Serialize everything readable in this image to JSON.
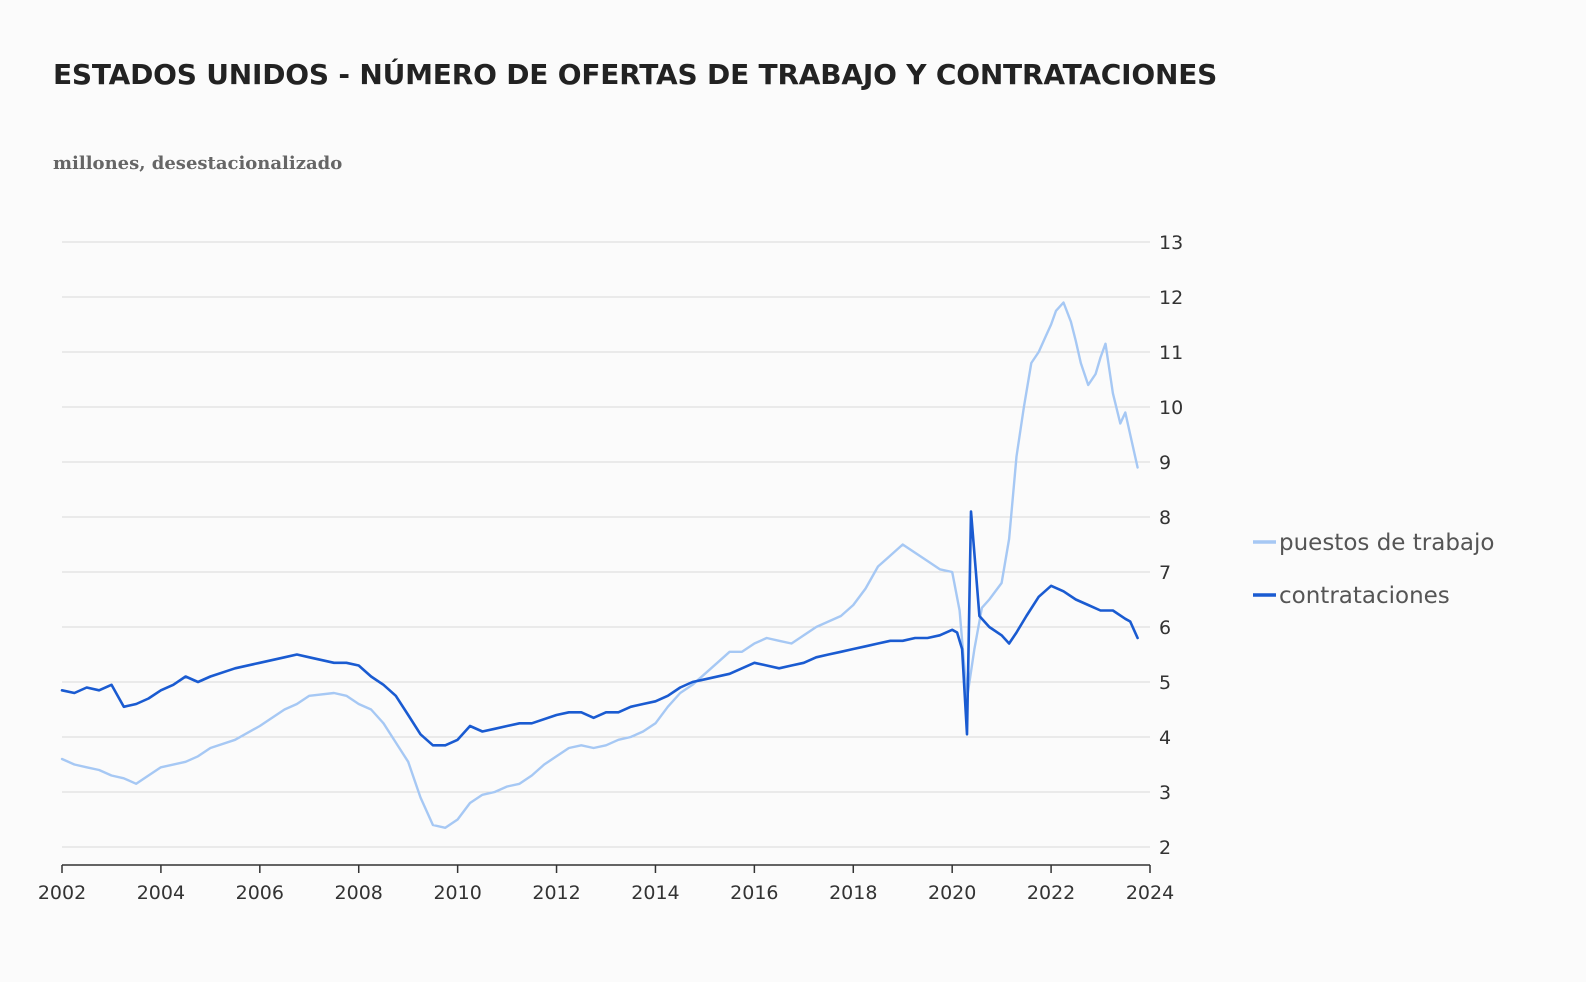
{
  "title": "ESTADOS UNIDOS - NÚMERO DE OFERTAS DE TRABAJO Y CONTRATACIONES",
  "subtitle": "millones, desestacionalizado",
  "colors": {
    "background": "#fbfbfb",
    "grid": "#d9d9d9",
    "axis": "#333333",
    "puestos": "#a6c8f4",
    "contrataciones": "#1a5bd1"
  },
  "chart_data": {
    "type": "line",
    "title": "ESTADOS UNIDOS - NÚMERO DE OFERTAS DE TRABAJO Y CONTRATACIONES",
    "subtitle": "millones, desestacionalizado",
    "xlabel": "",
    "ylabel": "",
    "xlim": [
      2002,
      2024
    ],
    "ylim": [
      2,
      13
    ],
    "x_ticks": [
      2002,
      2004,
      2006,
      2008,
      2010,
      2012,
      2014,
      2016,
      2018,
      2020,
      2022,
      2024
    ],
    "x_tick_labels": [
      "2002",
      "2004",
      "2006",
      "2008",
      "2010",
      "2012",
      "2014",
      "2016",
      "2018",
      "2020",
      "2022",
      "2024"
    ],
    "y_ticks": [
      2,
      3,
      4,
      5,
      6,
      7,
      8,
      9,
      10,
      11,
      12,
      13
    ],
    "y_tick_labels": [
      "2",
      "3",
      "4",
      "5",
      "6",
      "7",
      "8",
      "9",
      "10",
      "11",
      "12",
      "13"
    ],
    "y_axis_side": "right",
    "grid": true,
    "legend_position": "right",
    "series": [
      {
        "name": "puestos de trabajo",
        "color": "#a6c8f4",
        "points": [
          [
            2002.0,
            3.6
          ],
          [
            2002.25,
            3.5
          ],
          [
            2002.5,
            3.45
          ],
          [
            2002.75,
            3.4
          ],
          [
            2003.0,
            3.3
          ],
          [
            2003.25,
            3.25
          ],
          [
            2003.5,
            3.15
          ],
          [
            2003.75,
            3.3
          ],
          [
            2004.0,
            3.45
          ],
          [
            2004.5,
            3.55
          ],
          [
            2004.75,
            3.65
          ],
          [
            2005.0,
            3.8
          ],
          [
            2005.5,
            3.95
          ],
          [
            2006.0,
            4.2
          ],
          [
            2006.5,
            4.5
          ],
          [
            2006.75,
            4.6
          ],
          [
            2007.0,
            4.75
          ],
          [
            2007.5,
            4.8
          ],
          [
            2007.75,
            4.75
          ],
          [
            2008.0,
            4.6
          ],
          [
            2008.25,
            4.5
          ],
          [
            2008.5,
            4.25
          ],
          [
            2008.75,
            3.9
          ],
          [
            2009.0,
            3.55
          ],
          [
            2009.25,
            2.9
          ],
          [
            2009.5,
            2.4
          ],
          [
            2009.75,
            2.35
          ],
          [
            2010.0,
            2.5
          ],
          [
            2010.25,
            2.8
          ],
          [
            2010.5,
            2.95
          ],
          [
            2010.75,
            3.0
          ],
          [
            2011.0,
            3.1
          ],
          [
            2011.25,
            3.15
          ],
          [
            2011.5,
            3.3
          ],
          [
            2011.75,
            3.5
          ],
          [
            2012.0,
            3.65
          ],
          [
            2012.25,
            3.8
          ],
          [
            2012.5,
            3.85
          ],
          [
            2012.75,
            3.8
          ],
          [
            2013.0,
            3.85
          ],
          [
            2013.25,
            3.95
          ],
          [
            2013.5,
            4.0
          ],
          [
            2013.75,
            4.1
          ],
          [
            2014.0,
            4.25
          ],
          [
            2014.25,
            4.55
          ],
          [
            2014.5,
            4.8
          ],
          [
            2014.75,
            4.95
          ],
          [
            2015.0,
            5.15
          ],
          [
            2015.25,
            5.35
          ],
          [
            2015.5,
            5.55
          ],
          [
            2015.75,
            5.55
          ],
          [
            2016.0,
            5.7
          ],
          [
            2016.25,
            5.8
          ],
          [
            2016.5,
            5.75
          ],
          [
            2016.75,
            5.7
          ],
          [
            2017.0,
            5.85
          ],
          [
            2017.25,
            6.0
          ],
          [
            2017.5,
            6.1
          ],
          [
            2017.75,
            6.2
          ],
          [
            2018.0,
            6.4
          ],
          [
            2018.25,
            6.7
          ],
          [
            2018.5,
            7.1
          ],
          [
            2018.75,
            7.3
          ],
          [
            2019.0,
            7.5
          ],
          [
            2019.25,
            7.35
          ],
          [
            2019.5,
            7.2
          ],
          [
            2019.75,
            7.05
          ],
          [
            2020.0,
            7.0
          ],
          [
            2020.15,
            6.3
          ],
          [
            2020.3,
            4.7
          ],
          [
            2020.45,
            5.6
          ],
          [
            2020.6,
            6.35
          ],
          [
            2020.75,
            6.5
          ],
          [
            2021.0,
            6.8
          ],
          [
            2021.15,
            7.6
          ],
          [
            2021.3,
            9.1
          ],
          [
            2021.45,
            10.0
          ],
          [
            2021.6,
            10.8
          ],
          [
            2021.75,
            11.0
          ],
          [
            2021.9,
            11.3
          ],
          [
            2022.0,
            11.5
          ],
          [
            2022.1,
            11.75
          ],
          [
            2022.25,
            11.9
          ],
          [
            2022.4,
            11.55
          ],
          [
            2022.5,
            11.2
          ],
          [
            2022.6,
            10.8
          ],
          [
            2022.75,
            10.4
          ],
          [
            2022.9,
            10.6
          ],
          [
            2023.0,
            10.9
          ],
          [
            2023.1,
            11.15
          ],
          [
            2023.25,
            10.25
          ],
          [
            2023.4,
            9.7
          ],
          [
            2023.5,
            9.9
          ],
          [
            2023.6,
            9.5
          ],
          [
            2023.75,
            8.9
          ]
        ]
      },
      {
        "name": "contrataciones",
        "color": "#1a5bd1",
        "points": [
          [
            2002.0,
            4.85
          ],
          [
            2002.25,
            4.8
          ],
          [
            2002.5,
            4.9
          ],
          [
            2002.75,
            4.85
          ],
          [
            2003.0,
            4.95
          ],
          [
            2003.25,
            4.55
          ],
          [
            2003.5,
            4.6
          ],
          [
            2003.75,
            4.7
          ],
          [
            2004.0,
            4.85
          ],
          [
            2004.25,
            4.95
          ],
          [
            2004.5,
            5.1
          ],
          [
            2004.75,
            5.0
          ],
          [
            2005.0,
            5.1
          ],
          [
            2005.5,
            5.25
          ],
          [
            2006.0,
            5.35
          ],
          [
            2006.5,
            5.45
          ],
          [
            2006.75,
            5.5
          ],
          [
            2007.0,
            5.45
          ],
          [
            2007.5,
            5.35
          ],
          [
            2007.75,
            5.35
          ],
          [
            2008.0,
            5.3
          ],
          [
            2008.25,
            5.1
          ],
          [
            2008.5,
            4.95
          ],
          [
            2008.75,
            4.75
          ],
          [
            2009.0,
            4.4
          ],
          [
            2009.25,
            4.05
          ],
          [
            2009.5,
            3.85
          ],
          [
            2009.75,
            3.85
          ],
          [
            2010.0,
            3.95
          ],
          [
            2010.25,
            4.2
          ],
          [
            2010.5,
            4.1
          ],
          [
            2010.75,
            4.15
          ],
          [
            2011.0,
            4.2
          ],
          [
            2011.25,
            4.25
          ],
          [
            2011.5,
            4.25
          ],
          [
            2012.0,
            4.4
          ],
          [
            2012.25,
            4.45
          ],
          [
            2012.5,
            4.45
          ],
          [
            2012.75,
            4.35
          ],
          [
            2013.0,
            4.45
          ],
          [
            2013.25,
            4.45
          ],
          [
            2013.5,
            4.55
          ],
          [
            2013.75,
            4.6
          ],
          [
            2014.0,
            4.65
          ],
          [
            2014.25,
            4.75
          ],
          [
            2014.5,
            4.9
          ],
          [
            2014.75,
            5.0
          ],
          [
            2015.0,
            5.05
          ],
          [
            2015.5,
            5.15
          ],
          [
            2015.75,
            5.25
          ],
          [
            2016.0,
            5.35
          ],
          [
            2016.25,
            5.3
          ],
          [
            2016.5,
            5.25
          ],
          [
            2016.75,
            5.3
          ],
          [
            2017.0,
            5.35
          ],
          [
            2017.25,
            5.45
          ],
          [
            2017.5,
            5.5
          ],
          [
            2017.75,
            5.55
          ],
          [
            2018.0,
            5.6
          ],
          [
            2018.25,
            5.65
          ],
          [
            2018.5,
            5.7
          ],
          [
            2018.75,
            5.75
          ],
          [
            2019.0,
            5.75
          ],
          [
            2019.25,
            5.8
          ],
          [
            2019.5,
            5.8
          ],
          [
            2019.75,
            5.85
          ],
          [
            2020.0,
            5.95
          ],
          [
            2020.1,
            5.9
          ],
          [
            2020.2,
            5.6
          ],
          [
            2020.3,
            4.05
          ],
          [
            2020.38,
            8.1
          ],
          [
            2020.48,
            7.0
          ],
          [
            2020.55,
            6.2
          ],
          [
            2020.75,
            6.0
          ],
          [
            2021.0,
            5.85
          ],
          [
            2021.15,
            5.7
          ],
          [
            2021.3,
            5.9
          ],
          [
            2021.5,
            6.2
          ],
          [
            2021.75,
            6.55
          ],
          [
            2022.0,
            6.75
          ],
          [
            2022.25,
            6.65
          ],
          [
            2022.5,
            6.5
          ],
          [
            2022.75,
            6.4
          ],
          [
            2023.0,
            6.3
          ],
          [
            2023.25,
            6.3
          ],
          [
            2023.5,
            6.15
          ],
          [
            2023.6,
            6.1
          ],
          [
            2023.75,
            5.8
          ]
        ]
      }
    ]
  }
}
